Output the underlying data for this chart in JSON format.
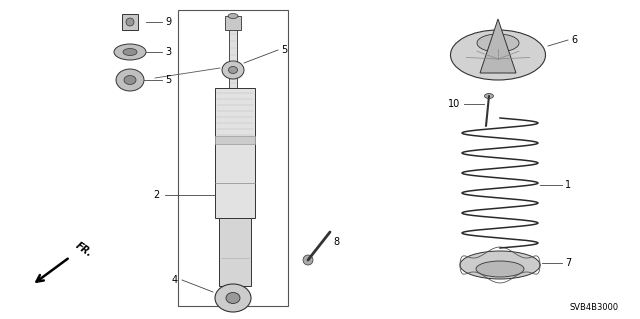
{
  "bg_color": "#ffffff",
  "line_color": "#333333",
  "diagram_code": "SVB4B3000",
  "label_fontsize": 7
}
